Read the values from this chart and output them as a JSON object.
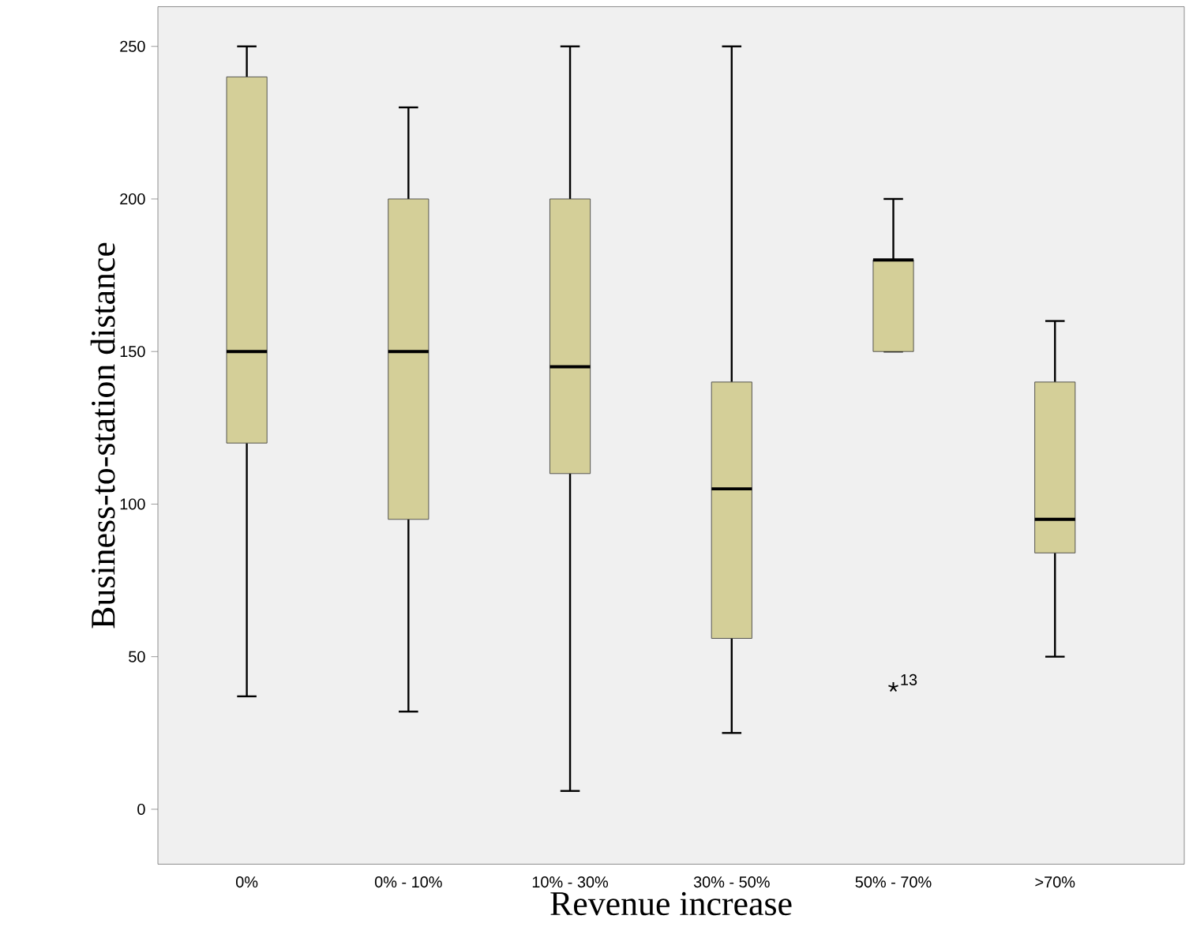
{
  "chart_data": {
    "type": "box",
    "xlabel": "Revenue increase",
    "ylabel": "Business-to-station distance",
    "categories": [
      "0%",
      "0% - 10%",
      "10% - 30%",
      "30% - 50%",
      "50% - 70%",
      ">70%"
    ],
    "color": "#d4cf98",
    "marker": "star",
    "boxes": [
      {
        "low": 37,
        "q1": 120,
        "median": 150,
        "q3": 240,
        "high": 250
      },
      {
        "low": 32,
        "q1": 95,
        "median": 150,
        "q3": 200,
        "high": 230
      },
      {
        "low": 6,
        "q1": 110,
        "median": 145,
        "q3": 200,
        "high": 250
      },
      {
        "low": 25,
        "q1": 56,
        "median": 105,
        "q3": 140,
        "high": 250
      },
      {
        "low": 150,
        "q1": 150,
        "median": 180,
        "q3": 180,
        "high": 200,
        "outliers": [
          40
        ]
      },
      {
        "low": 50,
        "q1": 84,
        "median": 95,
        "q3": 140,
        "high": 160
      }
    ],
    "ylim": [
      -18,
      263
    ],
    "yticks": [
      0,
      50,
      100,
      150,
      200,
      250
    ],
    "annotations": [
      "13"
    ]
  }
}
